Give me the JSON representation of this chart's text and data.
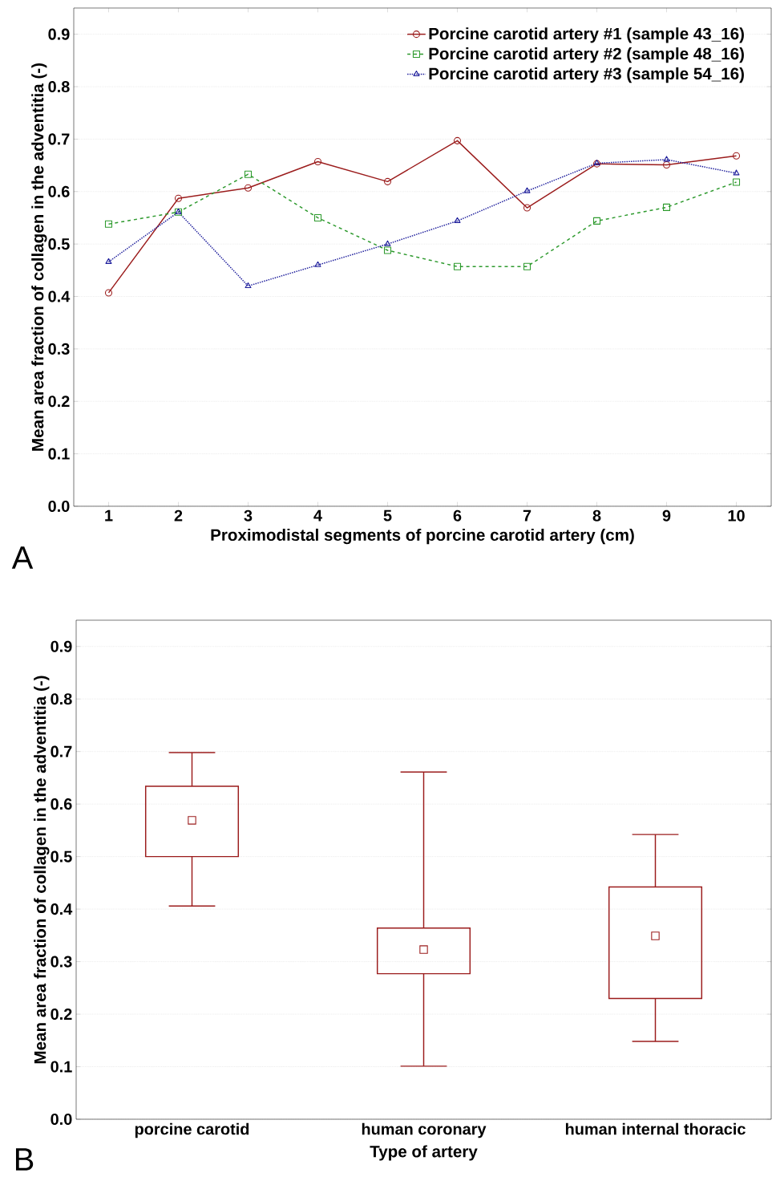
{
  "chart_data": [
    {
      "type": "line",
      "xlabel": "Proximodistal segments of porcine carotid artery (cm)",
      "ylabel": "Mean area fraction of collagen in the adventitia (-)",
      "annotations": [
        "A"
      ],
      "x": [
        1,
        2,
        3,
        4,
        5,
        6,
        7,
        8,
        9,
        10
      ],
      "series": [
        {
          "name": "Porcine carotid artery #1 (sample 43_16)",
          "color": "#9b1c1c",
          "marker": "circle",
          "line_style": "solid",
          "values": [
            0.407,
            0.587,
            0.607,
            0.657,
            0.619,
            0.697,
            0.569,
            0.653,
            0.651,
            0.668
          ]
        },
        {
          "name": "Porcine carotid artery #2 (sample 48_16)",
          "color": "#2e9a2e",
          "marker": "square",
          "line_style": "dashed",
          "values": [
            0.538,
            0.561,
            0.633,
            0.55,
            0.488,
            0.457,
            0.457,
            0.544,
            0.57,
            0.618
          ]
        },
        {
          "name": "Porcine carotid artery #3 (sample 54_16)",
          "color": "#1c1c9b",
          "marker": "triangle",
          "line_style": "dotted",
          "values": [
            0.466,
            0.561,
            0.42,
            0.46,
            0.5,
            0.544,
            0.601,
            0.654,
            0.661,
            0.635
          ]
        }
      ],
      "xlim": [
        0.5,
        10.5
      ],
      "ylim": [
        0,
        0.95
      ],
      "xticks": [
        1,
        2,
        3,
        4,
        5,
        6,
        7,
        8,
        9,
        10
      ],
      "yticks": [
        {
          "value": 0,
          "label": "0.0"
        },
        0.1,
        0.2,
        0.3,
        0.4,
        0.5,
        0.6,
        0.7,
        0.8,
        0.9
      ],
      "grid": "y",
      "legend": "top right"
    },
    {
      "type": "box",
      "xlabel": "Type of artery",
      "ylabel": "Mean area fraction of collagen in the adventitia (-)",
      "annotations": [
        "B"
      ],
      "categories": [
        "porcine carotid",
        "human coronary",
        "human internal thoracic"
      ],
      "color": "#9b1c1c",
      "boxes": [
        {
          "low": 0.406,
          "q1": 0.5,
          "median": 0.569,
          "q3": 0.634,
          "high": 0.698
        },
        {
          "low": 0.101,
          "q1": 0.277,
          "median": 0.323,
          "q3": 0.364,
          "high": 0.661
        },
        {
          "low": 0.148,
          "q1": 0.23,
          "median": 0.349,
          "q3": 0.442,
          "high": 0.542
        }
      ],
      "ylim": [
        0,
        0.95
      ],
      "yticks": [
        {
          "value": 0,
          "label": "0.0"
        },
        0.1,
        0.2,
        0.3,
        0.4,
        0.5,
        0.6,
        0.7,
        0.8,
        0.9
      ],
      "grid": "y"
    }
  ]
}
